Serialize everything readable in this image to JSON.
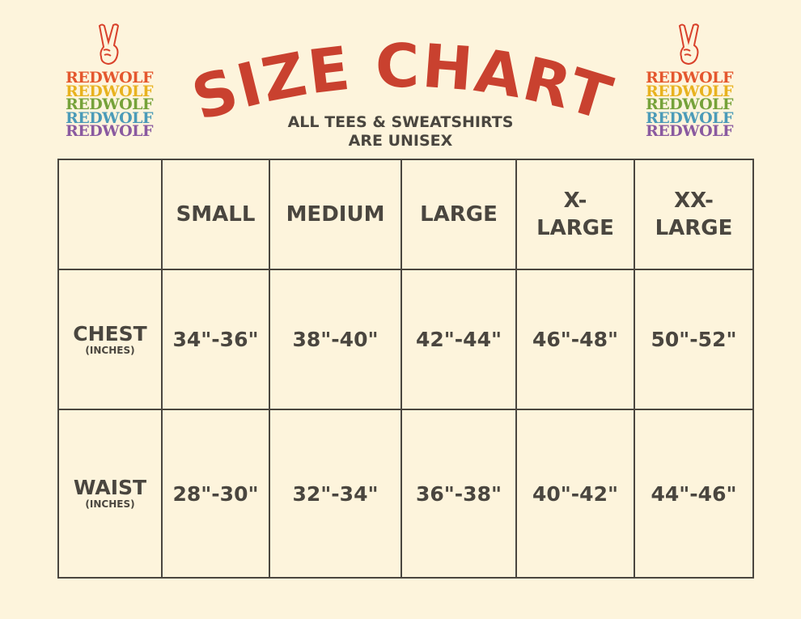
{
  "brand": {
    "name": "REDWOLF",
    "stripe_colors": [
      "#e4572e",
      "#e8b21f",
      "#76a23a",
      "#4b9bb8",
      "#8a5aa0"
    ],
    "icon": "peace-hand-icon"
  },
  "header": {
    "title": "SIZE CHART",
    "title_color": "#c9412f",
    "subtitle_line1": "ALL TEES & SWEATSHIRTS",
    "subtitle_line2": "ARE UNISEX"
  },
  "table": {
    "columns": [
      "SMALL",
      "MEDIUM",
      "LARGE",
      "X-\nLARGE",
      "XX-\nLARGE"
    ],
    "rows": [
      {
        "label": "CHEST",
        "unit": "(INCHES)",
        "values": [
          "34\"-36\"",
          "38\"-40\"",
          "42\"-44\"",
          "46\"-48\"",
          "50\"-52\""
        ]
      },
      {
        "label": "WAIST",
        "unit": "(INCHES)",
        "values": [
          "28\"-30\"",
          "32\"-34\"",
          "36\"-38\"",
          "40\"-42\"",
          "44\"-46\""
        ]
      }
    ]
  }
}
